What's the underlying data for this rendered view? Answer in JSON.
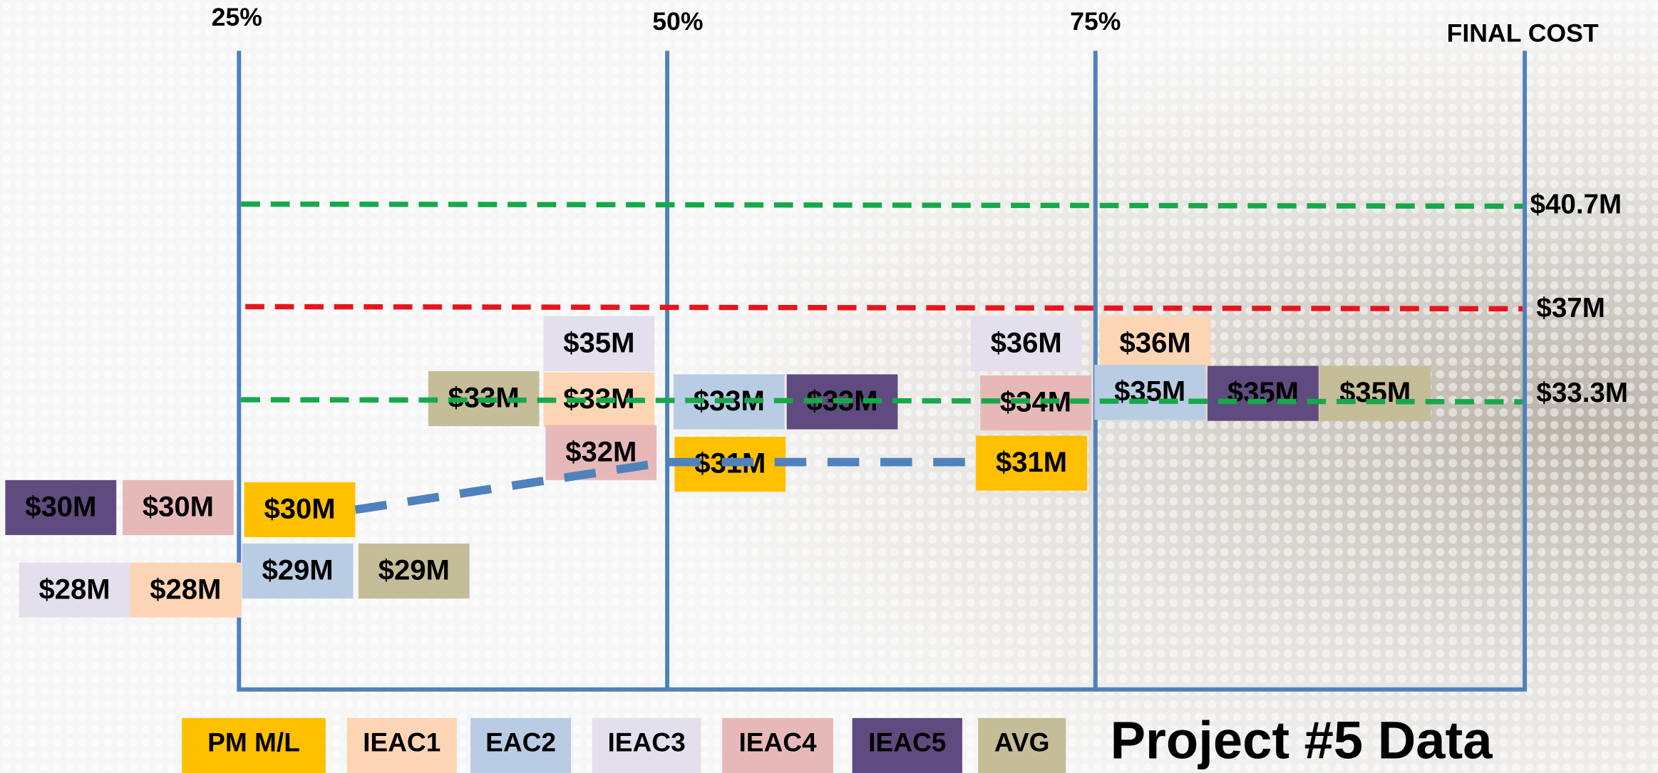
{
  "column_labels": [
    "25%",
    "50%",
    "75%",
    "FINAL COST"
  ],
  "reference_lines": [
    {
      "label": "$40.7M",
      "color": "#17a84a"
    },
    {
      "label": "$37M",
      "color": "#e8141c"
    },
    {
      "label": "$33.3M",
      "color": "#17a84a"
    }
  ],
  "legend": [
    {
      "name": "PM M/L",
      "color": "#ffc000",
      "boxes": [
        {
          "label": "$30M"
        },
        {
          "label": "$31M"
        },
        {
          "label": "$31M"
        }
      ]
    },
    {
      "name": "IEAC1",
      "color": "#fcd5b5",
      "boxes": [
        {
          "label": "$28M"
        },
        {
          "label": "$33M"
        },
        {
          "label": "$36M"
        }
      ]
    },
    {
      "name": "EAC2",
      "color": "#b8cce4",
      "boxes": [
        {
          "label": "$29M"
        },
        {
          "label": "$33M"
        },
        {
          "label": "$35M"
        }
      ]
    },
    {
      "name": "IEAC3",
      "color": "#e4dfec",
      "boxes": [
        {
          "label": "$28M"
        },
        {
          "label": "$35M"
        },
        {
          "label": "$36M"
        }
      ]
    },
    {
      "name": "IEAC4",
      "color": "#e6b9b8",
      "boxes": [
        {
          "label": "$30M"
        },
        {
          "label": "$32M"
        },
        {
          "label": "$34M"
        }
      ]
    },
    {
      "name": "IEAC5",
      "color": "#5f4b7f",
      "boxes": [
        {
          "label": "$30M"
        },
        {
          "label": "$33M"
        },
        {
          "label": "$35M"
        }
      ]
    },
    {
      "name": "AVG",
      "color": "#c4bd97",
      "boxes": [
        {
          "label": "$29M"
        },
        {
          "label": "$33M"
        },
        {
          "label": "$35M"
        }
      ]
    }
  ],
  "title": "Project #5 Data"
}
